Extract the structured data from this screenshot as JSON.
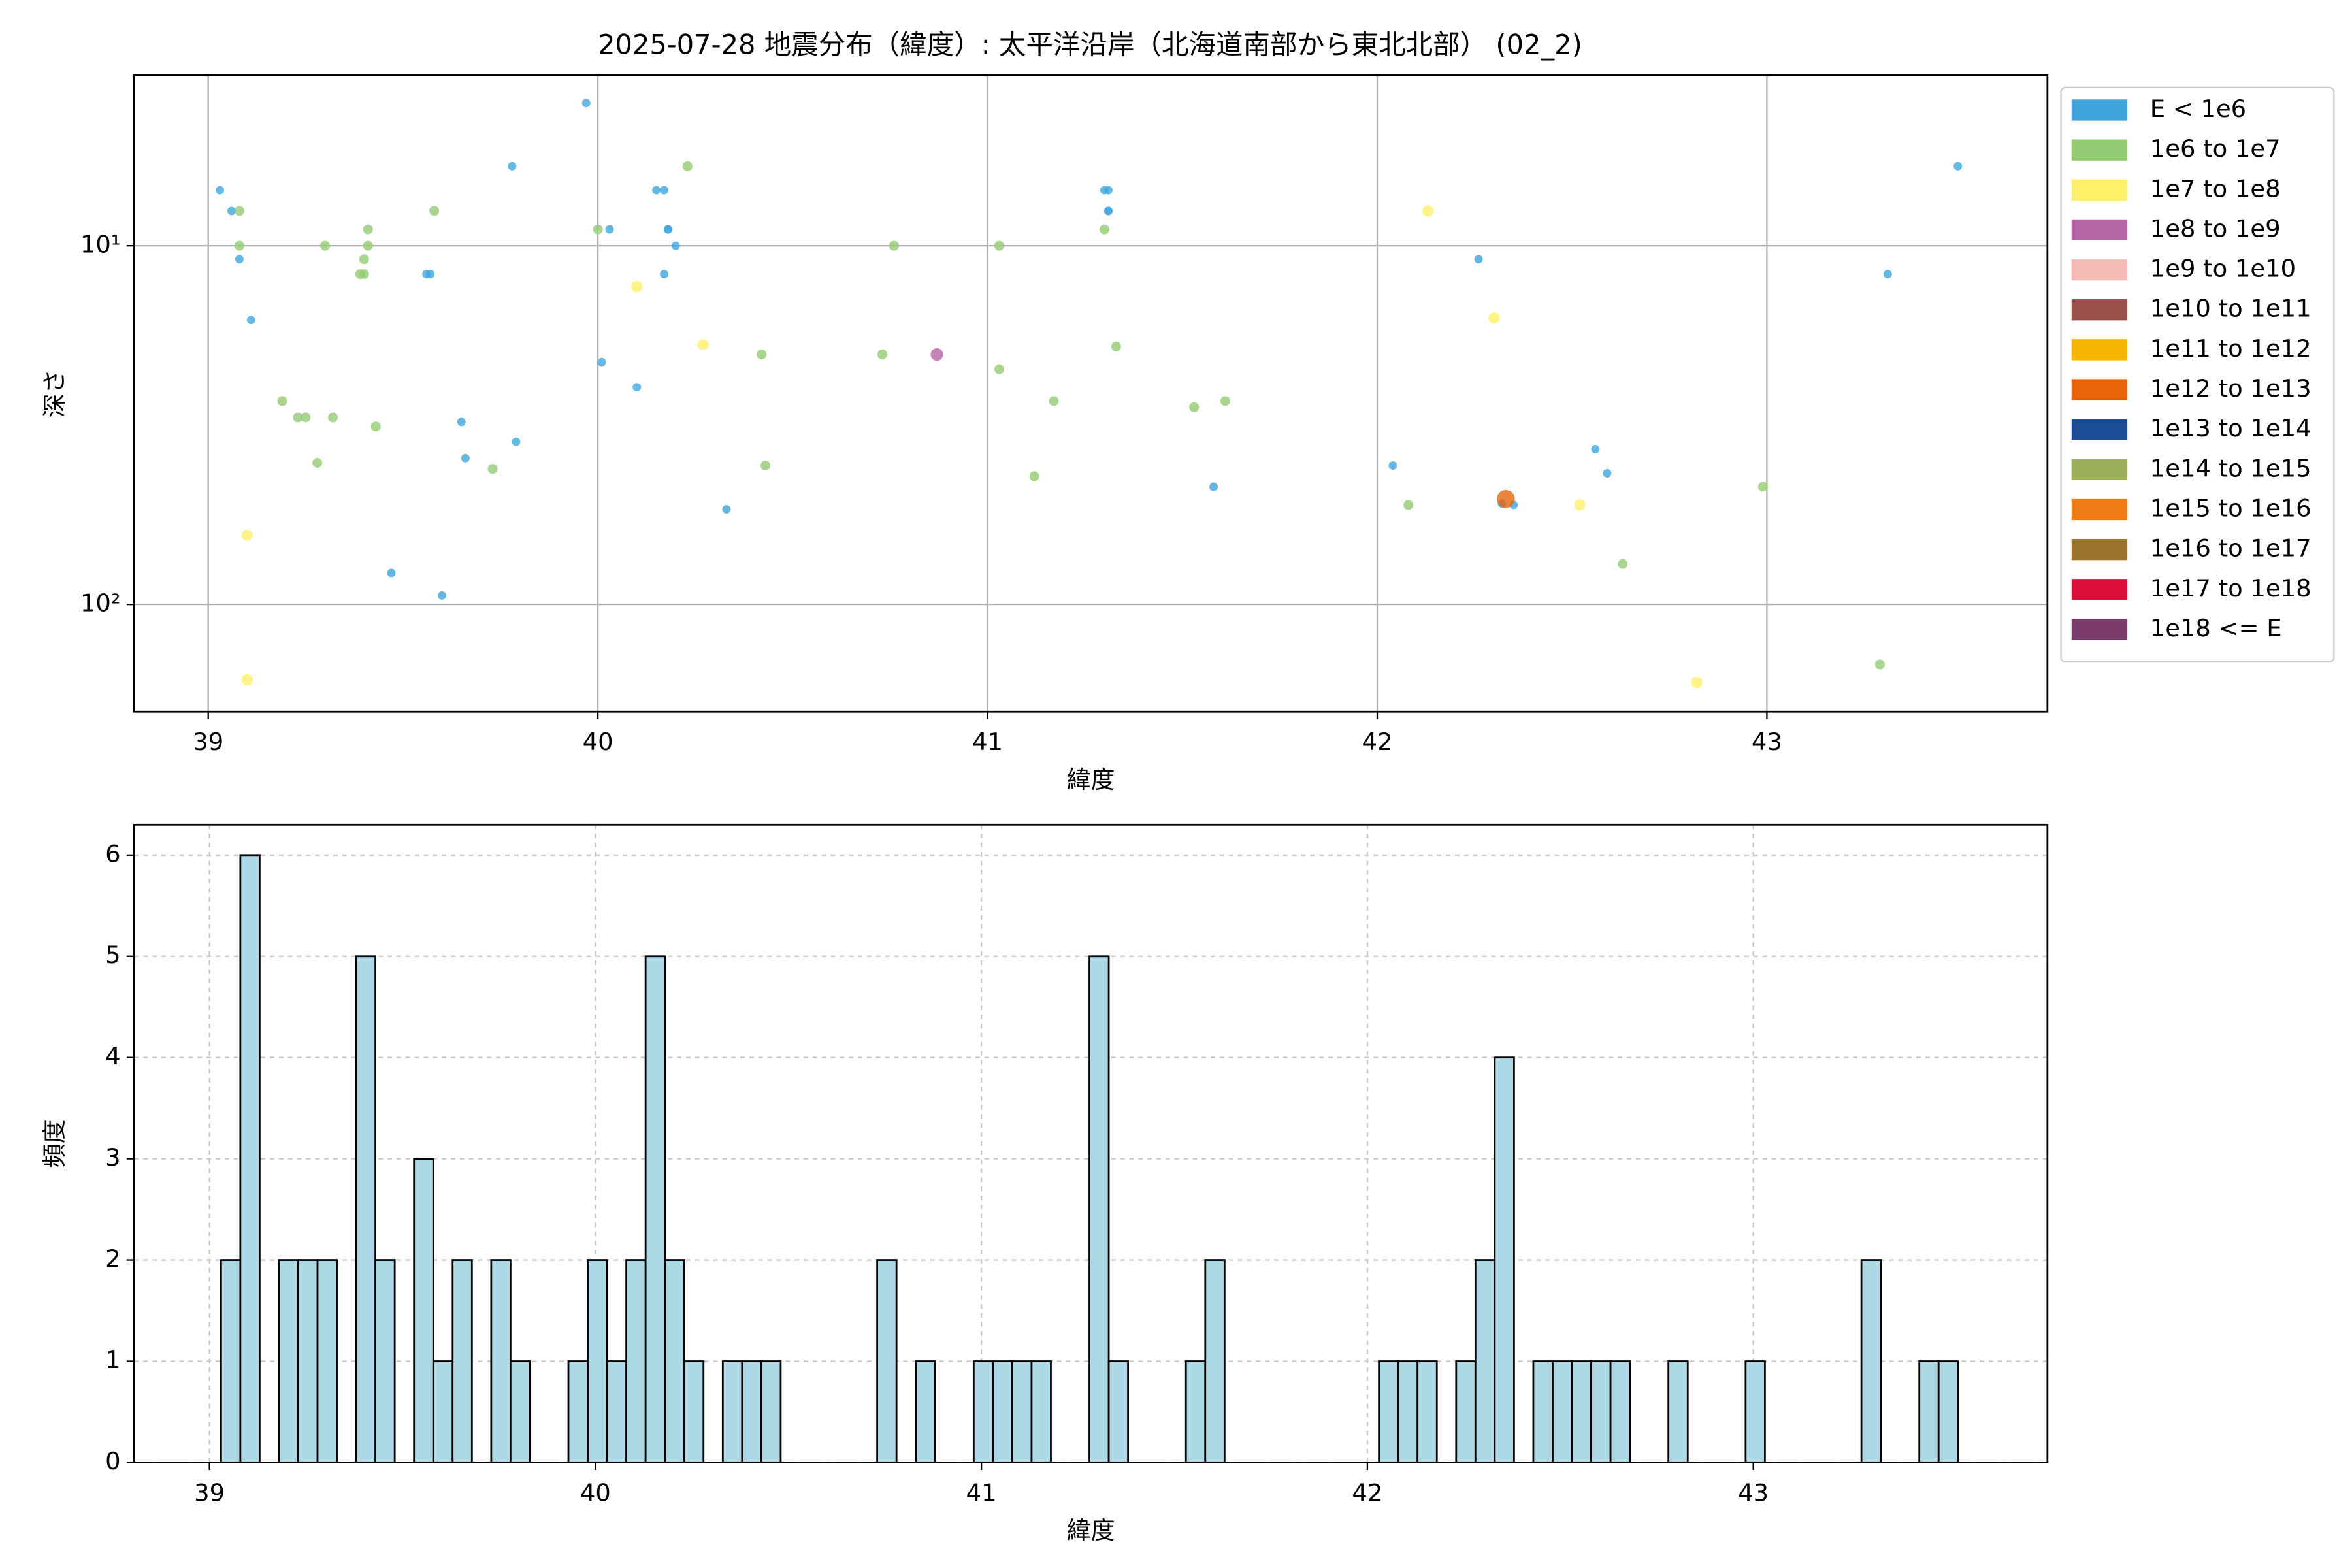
{
  "chart_data": [
    {
      "type": "scatter",
      "title": "2025-07-28 地震分布（緯度）: 太平洋沿岸（北海道南部から東北北部） (02_2)",
      "xlabel": "緯度",
      "ylabel": "深さ",
      "xlim": [
        38.81,
        43.72
      ],
      "xticks": [
        39,
        40,
        41,
        42,
        43
      ],
      "ylim": [
        199,
        3.35
      ],
      "yscale": "log",
      "yticks": [
        {
          "value": 10,
          "label": "10¹"
        },
        {
          "value": 100,
          "label": "10²"
        }
      ],
      "grid": true,
      "grid_style": "solid",
      "legend": "outside-right",
      "series": [
        {
          "name": "E < 1e6",
          "color": "#3ea5dd",
          "x": [
            39.03,
            39.06,
            39.08,
            39.11,
            39.56,
            39.57,
            39.65,
            39.66,
            39.79,
            39.78,
            39.97,
            39.47,
            39.6,
            40.01,
            40.03,
            40.1,
            40.15,
            40.17,
            40.17,
            40.18,
            40.18,
            40.2,
            40.33,
            41.3,
            41.31,
            41.31,
            41.31,
            41.58,
            42.04,
            42.26,
            42.56,
            42.59,
            42.32,
            42.35,
            43.31,
            43.49
          ],
          "values": [
            7.0,
            8.0,
            10.9,
            16.1,
            12.0,
            12.0,
            31.0,
            39.1,
            35.2,
            6.0,
            4.0,
            81.7,
            94.4,
            21.1,
            9.0,
            24.8,
            7.0,
            7.0,
            12.0,
            9.0,
            9.0,
            10.0,
            54.3,
            7.0,
            7.0,
            8.0,
            8.0,
            47.0,
            41.0,
            10.9,
            36.9,
            43.1,
            52.3,
            52.8,
            12.0,
            6.0
          ]
        },
        {
          "name": "1e6 to 1e7",
          "color": "#93cb72",
          "x": [
            39.08,
            39.08,
            39.3,
            39.41,
            39.41,
            39.4,
            39.4,
            39.39,
            39.19,
            39.23,
            39.25,
            39.32,
            39.43,
            39.28,
            39.58,
            39.73,
            40.0,
            40.23,
            40.76,
            41.03,
            40.42,
            40.73,
            41.03,
            41.33,
            41.17,
            41.53,
            41.61,
            40.43,
            41.12,
            41.3,
            42.08,
            42.63,
            42.99,
            43.29
          ],
          "values": [
            8.0,
            10.0,
            10.0,
            9.0,
            10.0,
            10.9,
            12.0,
            12.0,
            27.1,
            30.1,
            30.1,
            30.1,
            31.9,
            40.3,
            8.0,
            41.9,
            9.0,
            6.0,
            10.0,
            10.0,
            20.1,
            20.1,
            22.1,
            19.1,
            27.1,
            28.2,
            27.1,
            41.0,
            43.9,
            9.0,
            52.8,
            77.1,
            47.0,
            147
          ]
        },
        {
          "name": "1e7 to 1e8",
          "color": "#fff06a",
          "x": [
            39.1,
            39.1,
            40.1,
            40.27,
            42.13,
            42.3,
            42.52,
            42.82
          ],
          "values": [
            64.1,
            162,
            13.0,
            18.9,
            8.0,
            15.9,
            52.8,
            165
          ]
        },
        {
          "name": "1e8 to 1e9",
          "color": "#b564a5",
          "x": [
            40.87
          ],
          "values": [
            20.1
          ]
        },
        {
          "name": "1e9 to 1e10",
          "color": "#f5bcb7",
          "x": [],
          "values": []
        },
        {
          "name": "1e10 to 1e11",
          "color": "#9a4f4a",
          "x": [],
          "values": []
        },
        {
          "name": "1e11 to 1e12",
          "color": "#f5b400",
          "x": [],
          "values": []
        },
        {
          "name": "1e12 to 1e13",
          "color": "#e8650b",
          "x": [
            42.33
          ],
          "values": [
            50.8
          ]
        },
        {
          "name": "1e13 to 1e14",
          "color": "#1a4d96",
          "x": [],
          "values": []
        },
        {
          "name": "1e14 to 1e15",
          "color": "#9cae57",
          "x": [],
          "values": []
        },
        {
          "name": "1e15 to 1e16",
          "color": "#f07d16",
          "x": [],
          "values": []
        },
        {
          "name": "1e16 to 1e17",
          "color": "#9a742d",
          "x": [],
          "values": []
        },
        {
          "name": "1e17 to 1e18",
          "color": "#dc0f3c",
          "x": [],
          "values": []
        },
        {
          "name": "1e18 <= E",
          "color": "#7b3b6c",
          "x": [],
          "values": []
        }
      ]
    },
    {
      "type": "histogram",
      "xlabel": "緯度",
      "ylabel": "頻度",
      "xlim": [
        38.805,
        43.762
      ],
      "xticks": [
        39,
        40,
        41,
        42,
        43
      ],
      "ylim": [
        0,
        6.3
      ],
      "yticks": [
        0,
        1,
        2,
        3,
        4,
        5,
        6
      ],
      "grid": true,
      "grid_style": "dashed",
      "color": "#add8e6",
      "edgecolor": "#000000",
      "bins": [
        39.03,
        39.08,
        39.13,
        39.18,
        39.23,
        39.28,
        39.33,
        39.38,
        39.43,
        39.48,
        39.53,
        39.58,
        39.63,
        39.68,
        39.73,
        39.78,
        39.83,
        39.88,
        39.93,
        39.98,
        40.03,
        40.08,
        40.13,
        40.18,
        40.23,
        40.28,
        40.33,
        40.38,
        40.43,
        40.48,
        40.53,
        40.58,
        40.63,
        40.68,
        40.73,
        40.78,
        40.83,
        40.88,
        40.93,
        40.98,
        41.03,
        41.08,
        41.13,
        41.18,
        41.23,
        41.28,
        41.33,
        41.38,
        41.43,
        41.48,
        41.53,
        41.58,
        41.63,
        41.68,
        41.73,
        41.78,
        41.83,
        41.88,
        41.93,
        41.98,
        42.03,
        42.08,
        42.13,
        42.18,
        42.23,
        42.28,
        42.33,
        42.38,
        42.43,
        42.48,
        42.53,
        42.58,
        42.63,
        42.68,
        42.73,
        42.78,
        42.83,
        42.88,
        42.93,
        42.98,
        43.03,
        43.08,
        43.13,
        43.18,
        43.23,
        43.28,
        43.33,
        43.38,
        43.43,
        43.48,
        43.53
      ],
      "values": [
        2,
        6,
        0,
        2,
        2,
        2,
        0,
        5,
        2,
        0,
        3,
        1,
        2,
        0,
        2,
        1,
        0,
        0,
        1,
        2,
        1,
        2,
        5,
        2,
        1,
        0,
        1,
        1,
        1,
        0,
        0,
        0,
        0,
        0,
        2,
        0,
        1,
        0,
        0,
        1,
        1,
        1,
        1,
        0,
        0,
        5,
        1,
        0,
        0,
        0,
        1,
        2,
        0,
        0,
        0,
        0,
        0,
        0,
        0,
        0,
        1,
        1,
        1,
        0,
        1,
        2,
        4,
        0,
        1,
        1,
        1,
        1,
        1,
        0,
        0,
        1,
        0,
        0,
        0,
        1,
        0,
        0,
        0,
        0,
        0,
        2,
        0,
        0,
        1,
        1
      ]
    }
  ]
}
